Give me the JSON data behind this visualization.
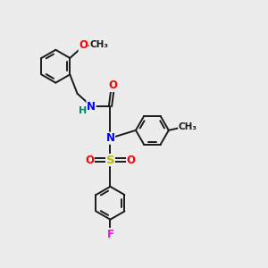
{
  "bg_color": "#ececec",
  "bond_color": "#1a1a1a",
  "colors": {
    "N": "#0000ff",
    "O": "#ff0000",
    "S": "#bbbb00",
    "F": "#ff00ff",
    "H": "#008866",
    "C": "#1a1a1a"
  }
}
